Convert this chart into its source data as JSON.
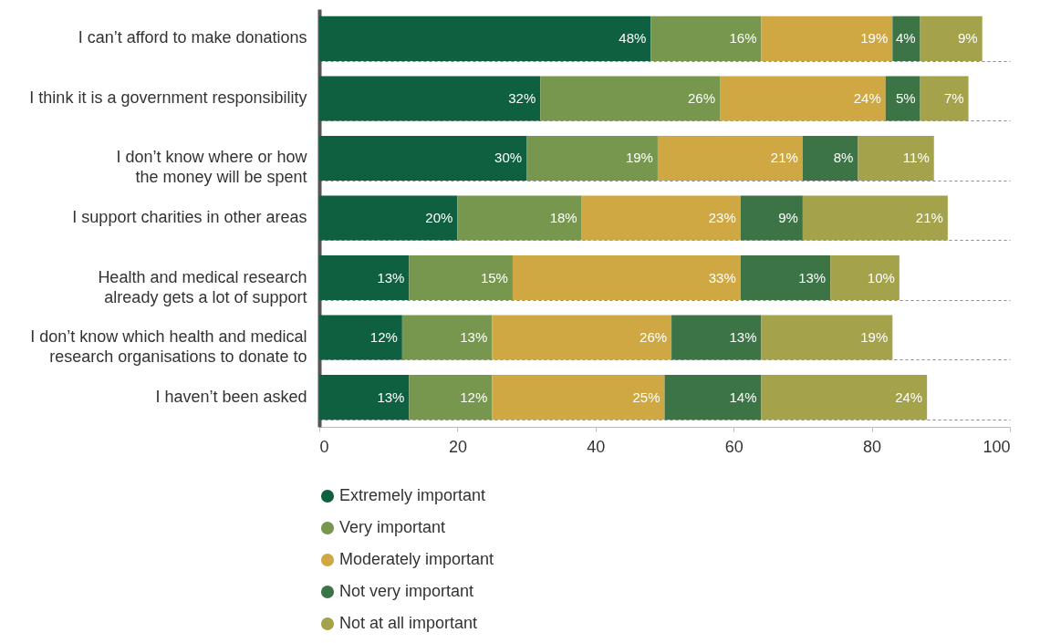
{
  "chart_data": {
    "type": "bar",
    "orientation": "horizontal",
    "stacked": true,
    "categories": [
      "I can’t afford to make donations",
      "I think it is a government responsibility",
      "I don’t know where or how\nthe money will be spent",
      "I support charities in other areas",
      "Health and medical research\nalready gets a lot of support",
      "I don’t know which health and medical\nresearch organisations to donate to",
      "I haven’t been asked"
    ],
    "series": [
      {
        "name": "Extremely important",
        "color": "#0f6040",
        "values": [
          48,
          32,
          30,
          20,
          13,
          12,
          13
        ],
        "value_labels": [
          "48%",
          "32%",
          "30%",
          "20%",
          "13%",
          "12%",
          "13%"
        ]
      },
      {
        "name": "Very important",
        "color": "#76974d",
        "values": [
          16,
          26,
          19,
          18,
          15,
          13,
          12
        ],
        "value_labels": [
          "16%",
          "26%",
          "19%",
          "18%",
          "15%",
          "13%",
          "12%"
        ]
      },
      {
        "name": "Moderately important",
        "color": "#d0a843",
        "values": [
          19,
          24,
          21,
          23,
          33,
          26,
          25
        ],
        "value_labels": [
          "19%",
          "24%",
          "21%",
          "23%",
          "33%",
          "26%",
          "25%"
        ]
      },
      {
        "name": "Not very important",
        "color": "#3c7446",
        "values": [
          4,
          5,
          8,
          9,
          13,
          13,
          14
        ],
        "value_labels": [
          "4%",
          "5%",
          "8%",
          "9%",
          "13%",
          "13%",
          "14%"
        ]
      },
      {
        "name": "Not at all important",
        "color": "#a4a24a",
        "values": [
          9,
          7,
          11,
          21,
          10,
          19,
          24
        ],
        "value_labels": [
          "9%",
          "7%",
          "11%",
          "21%",
          "10%",
          "19%",
          "24%"
        ]
      }
    ],
    "xlim": [
      0,
      100
    ],
    "xticks": [
      0,
      20,
      40,
      60,
      80,
      100
    ],
    "grid": "y",
    "legend": "bottom left"
  }
}
